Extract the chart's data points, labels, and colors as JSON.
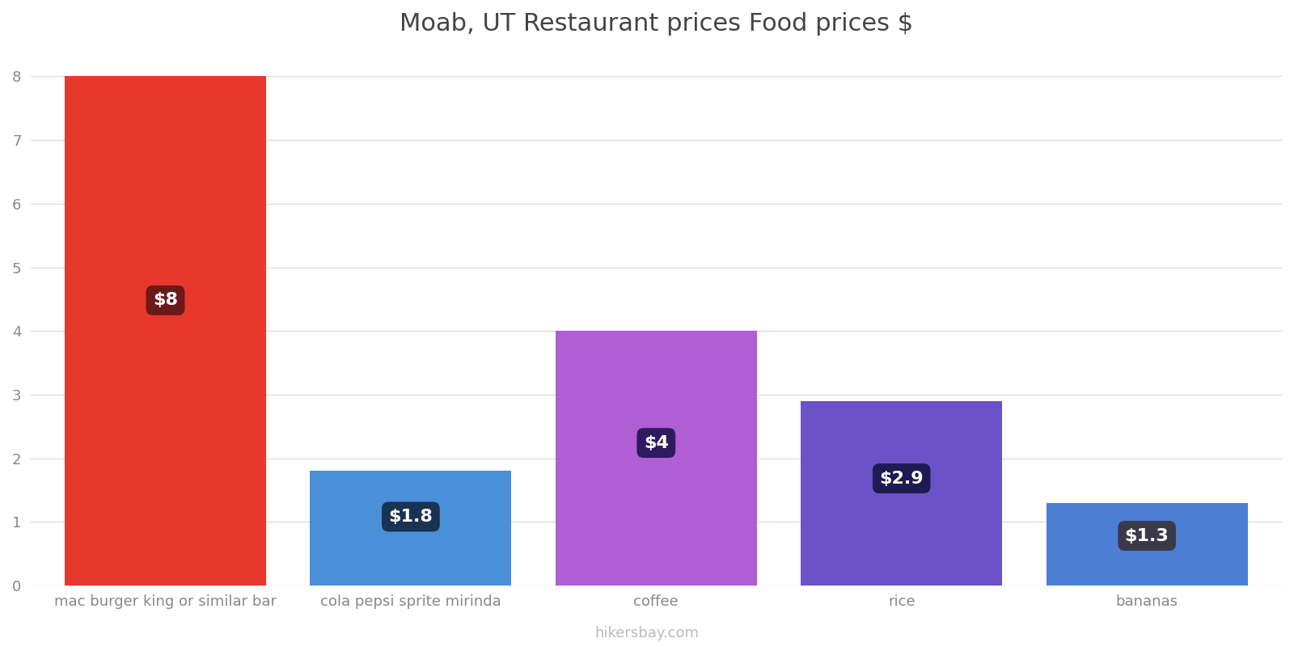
{
  "title": "Moab, UT Restaurant prices Food prices $",
  "categories": [
    "mac burger king or similar bar",
    "cola pepsi sprite mirinda",
    "coffee",
    "rice",
    "bananas"
  ],
  "values": [
    8.0,
    1.8,
    4.0,
    2.9,
    1.3
  ],
  "bar_colors": [
    "#e8372c",
    "#4a90d9",
    "#b05ed4",
    "#6b52c8",
    "#4a7fd4"
  ],
  "label_texts": [
    "$8",
    "$1.8",
    "$4",
    "$2.9",
    "$1.3"
  ],
  "label_bg_colors": [
    "#6b1a1a",
    "#1a3352",
    "#2e1a5e",
    "#1e1a52",
    "#3a3a4a"
  ],
  "ylabel_values": [
    0,
    1,
    2,
    3,
    4,
    5,
    6,
    7,
    8
  ],
  "ylim": [
    0,
    8.4
  ],
  "background_color": "#ffffff",
  "grid_color": "#dddddd",
  "watermark": "hikersbay.com",
  "title_fontsize": 22,
  "tick_fontsize": 13,
  "label_fontsize": 16,
  "bar_width": 0.82
}
